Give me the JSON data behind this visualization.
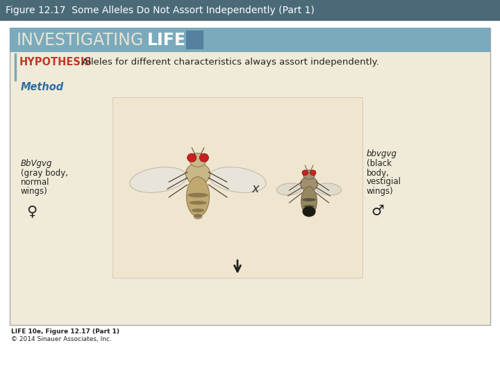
{
  "title": "Figure 12.17  Some Alleles Do Not Assort Independently (Part 1)",
  "title_bg": "#4a6a78",
  "title_color": "#ffffff",
  "title_fontsize": 10,
  "fig_bg": "#ffffff",
  "outer_box_bg": "#f0ebd8",
  "outer_box_border": "#aaaaaa",
  "investigating_bg": "#7aaabb",
  "investigating_text1": "INVESTIGATING",
  "investigating_text2": "LIFE",
  "invest_text_color1": "#e8e4d4",
  "invest_text_color2": "#ffffff",
  "invest_fontsize": 17,
  "blue_accent_bg": "#5580a0",
  "hypothesis_label": "HYPOTHESIS",
  "hypothesis_label_color": "#c0392b",
  "hypothesis_text": "Alleles for different characteristics always assort independently.",
  "hypothesis_fontsize": 9.5,
  "method_label": "Method",
  "method_color": "#2e6da4",
  "method_fontsize": 10.5,
  "inner_box_bg": "#f0e6d0",
  "inner_box_border": "#cccccc",
  "left_genotype": "BbVgvg",
  "left_pheno1": "(gray body,",
  "left_pheno2": "normal",
  "left_pheno3": "wings)",
  "left_symbol": "♀",
  "right_genotype": "bbvgvg",
  "right_pheno1": "(black",
  "right_pheno2": "body,",
  "right_pheno3": "vestigial",
  "right_pheno4": "wings)",
  "right_symbol": "♂",
  "cross_symbol": "x",
  "text_fontsize": 8.5,
  "caption1": "LIFE 10e, Figure 12.17 (Part 1)",
  "caption2": "© 2014 Sinauer Associates, Inc.",
  "caption_fontsize": 6.5
}
